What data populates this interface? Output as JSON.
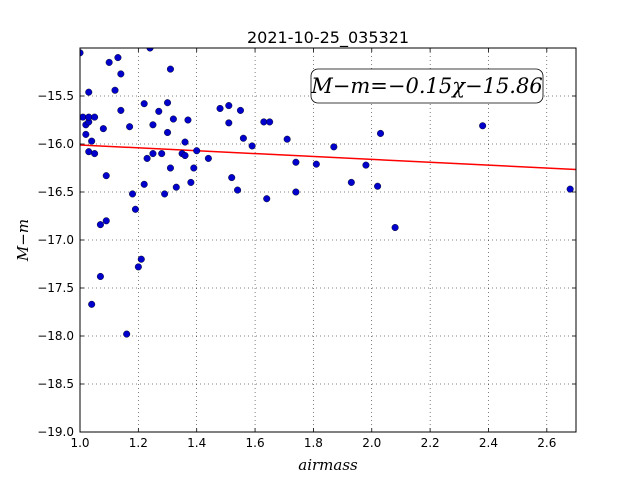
{
  "chart_data": {
    "type": "scatter",
    "title": "2021-10-25_035321",
    "xlabel": "airmass",
    "ylabel": "M−m",
    "xlim": [
      1.0,
      2.7
    ],
    "ylim": [
      -19.0,
      -15.0
    ],
    "y_inverted": true,
    "grid": true,
    "grid_style": "dotted",
    "xticks": [
      1.0,
      1.2,
      1.4,
      1.6,
      1.8,
      2.0,
      2.2,
      2.4,
      2.6
    ],
    "xtick_labels": [
      "1.0",
      "1.2",
      "1.4",
      "1.6",
      "1.8",
      "2.0",
      "2.2",
      "2.4",
      "2.6"
    ],
    "yticks": [
      -15.5,
      -16.0,
      -16.5,
      -17.0,
      -17.5,
      -18.0,
      -18.5,
      -19.0
    ],
    "ytick_labels": [
      "−15.5",
      "−16.0",
      "−16.5",
      "−17.0",
      "−17.5",
      "−18.0",
      "−18.5",
      "−19.0"
    ],
    "annotation": "M−m=−0.15χ−15.86",
    "fit": {
      "slope": -0.15,
      "intercept": -15.86,
      "color": "#ff0000"
    },
    "point_color": "#0000cc",
    "points": [
      [
        1.0,
        -15.05
      ],
      [
        1.01,
        -15.72
      ],
      [
        1.02,
        -15.9
      ],
      [
        1.02,
        -15.8
      ],
      [
        1.03,
        -15.77
      ],
      [
        1.03,
        -15.72
      ],
      [
        1.03,
        -15.46
      ],
      [
        1.03,
        -16.08
      ],
      [
        1.04,
        -15.97
      ],
      [
        1.04,
        -17.67
      ],
      [
        1.05,
        -15.72
      ],
      [
        1.05,
        -16.1
      ],
      [
        1.07,
        -16.84
      ],
      [
        1.07,
        -17.38
      ],
      [
        1.08,
        -15.84
      ],
      [
        1.09,
        -16.33
      ],
      [
        1.09,
        -16.8
      ],
      [
        1.1,
        -15.15
      ],
      [
        1.12,
        -15.44
      ],
      [
        1.13,
        -15.1
      ],
      [
        1.14,
        -15.65
      ],
      [
        1.14,
        -15.27
      ],
      [
        1.16,
        -17.98
      ],
      [
        1.17,
        -15.82
      ],
      [
        1.18,
        -16.52
      ],
      [
        1.19,
        -16.68
      ],
      [
        1.2,
        -17.28
      ],
      [
        1.21,
        -17.2
      ],
      [
        1.22,
        -15.58
      ],
      [
        1.22,
        -16.42
      ],
      [
        1.23,
        -16.15
      ],
      [
        1.24,
        -15.0
      ],
      [
        1.25,
        -16.1
      ],
      [
        1.25,
        -15.8
      ],
      [
        1.27,
        -15.66
      ],
      [
        1.28,
        -16.1
      ],
      [
        1.29,
        -16.52
      ],
      [
        1.3,
        -15.57
      ],
      [
        1.3,
        -15.88
      ],
      [
        1.31,
        -15.22
      ],
      [
        1.31,
        -16.25
      ],
      [
        1.32,
        -15.74
      ],
      [
        1.33,
        -16.45
      ],
      [
        1.35,
        -16.1
      ],
      [
        1.36,
        -15.98
      ],
      [
        1.36,
        -16.12
      ],
      [
        1.37,
        -15.75
      ],
      [
        1.38,
        -16.4
      ],
      [
        1.39,
        -16.25
      ],
      [
        1.4,
        -16.07
      ],
      [
        1.44,
        -16.15
      ],
      [
        1.48,
        -15.63
      ],
      [
        1.51,
        -15.6
      ],
      [
        1.51,
        -15.78
      ],
      [
        1.52,
        -16.35
      ],
      [
        1.54,
        -16.48
      ],
      [
        1.55,
        -15.65
      ],
      [
        1.56,
        -15.94
      ],
      [
        1.59,
        -16.02
      ],
      [
        1.63,
        -15.77
      ],
      [
        1.64,
        -16.57
      ],
      [
        1.65,
        -15.77
      ],
      [
        1.71,
        -15.95
      ],
      [
        1.74,
        -16.19
      ],
      [
        1.74,
        -16.5
      ],
      [
        1.81,
        -16.21
      ],
      [
        1.87,
        -16.03
      ],
      [
        1.93,
        -16.4
      ],
      [
        1.98,
        -16.22
      ],
      [
        2.02,
        -16.44
      ],
      [
        2.03,
        -15.89
      ],
      [
        2.08,
        -16.87
      ],
      [
        2.38,
        -15.81
      ],
      [
        2.68,
        -16.47
      ]
    ]
  }
}
